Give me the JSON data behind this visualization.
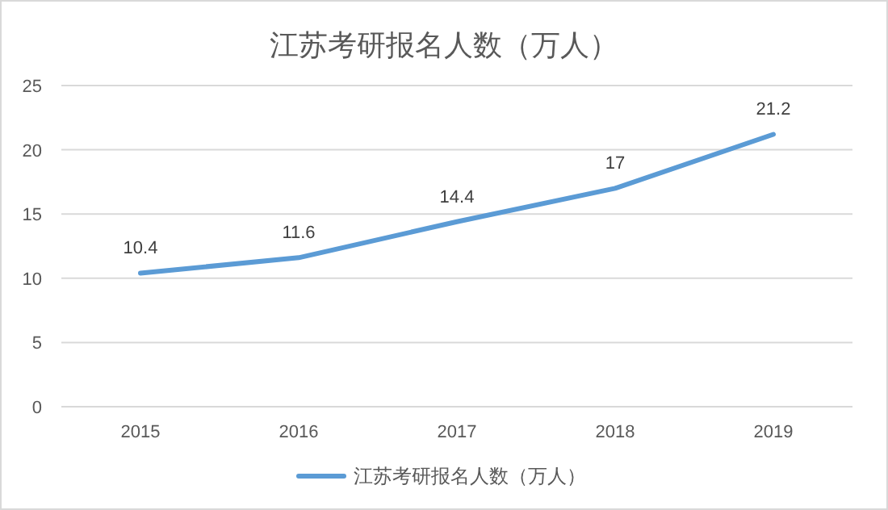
{
  "chart_data": {
    "type": "line",
    "title": "江苏考研报名人数（万人）",
    "categories": [
      "2015",
      "2016",
      "2017",
      "2018",
      "2019"
    ],
    "series": [
      {
        "name": "江苏考研报名人数（万人）",
        "color": "#5b9bd5",
        "values": [
          10.4,
          11.6,
          14.4,
          17,
          21.2
        ]
      }
    ],
    "ylim": [
      0,
      25
    ],
    "yticks": [
      0,
      5,
      10,
      15,
      20,
      25
    ],
    "grid": "y",
    "legend": "bottom",
    "data_labels": true,
    "marker": "none",
    "line_style": "solid"
  }
}
